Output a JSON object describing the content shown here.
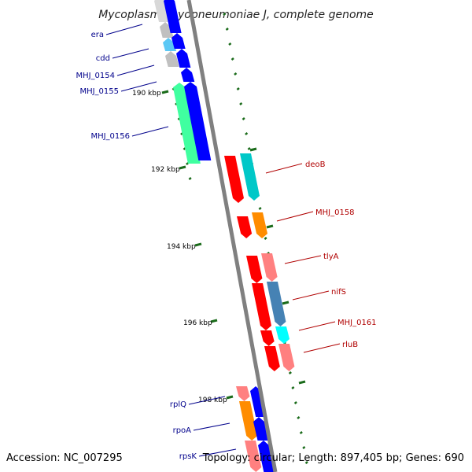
{
  "title": "Mycoplasma hyopneumoniae J, complete genome",
  "footer": {
    "accession": "Accession: NC_007295",
    "topology": "Topology: circular; Length: 897,405 bp; Genes: 690"
  },
  "colors": {
    "backbone": "#808080",
    "tick": "#1a6b1a",
    "left_label": "#00008b",
    "right_label": "#b00000"
  },
  "kbp_labels": [
    "190 kbp",
    "192 kbp",
    "194 kbp",
    "196 kbp",
    "198 kbp"
  ],
  "left_labels": [
    "era",
    "cdd",
    "MHJ_0154",
    "MHJ_0155",
    "MHJ_0156",
    "rplQ",
    "rpoA",
    "rpsK"
  ],
  "right_labels": [
    "deoB",
    "MHJ_0158",
    "tlyA",
    "nifS",
    "MHJ_0161",
    "rluB"
  ]
}
